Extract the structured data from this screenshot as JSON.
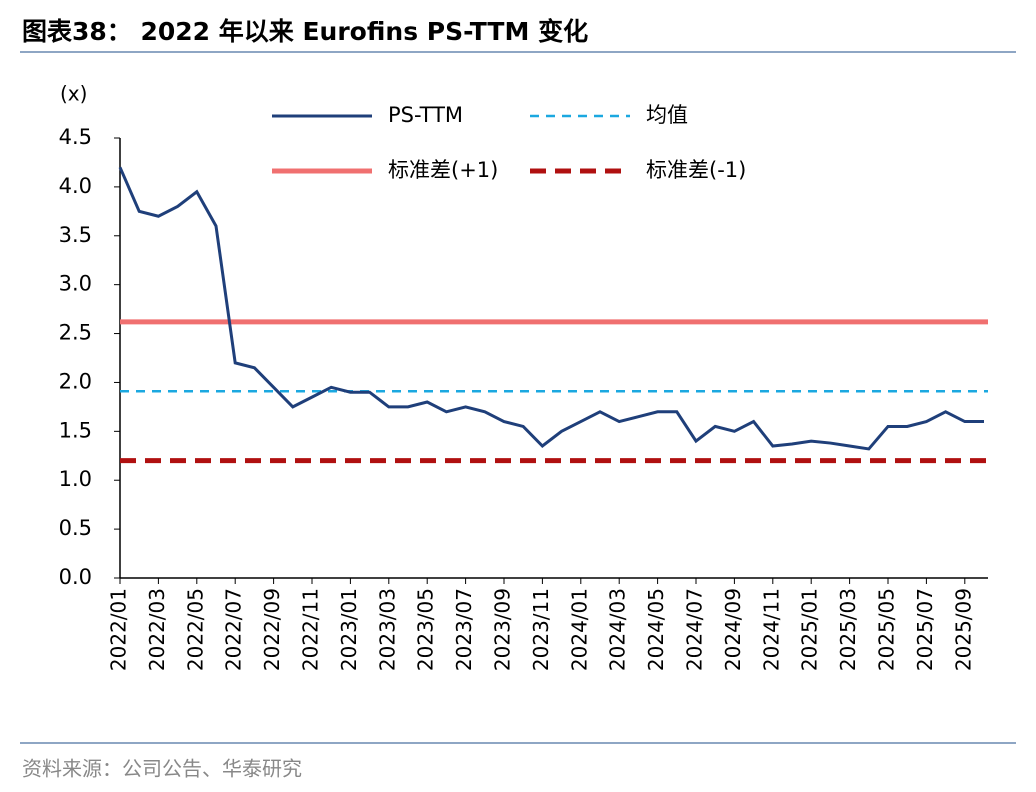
{
  "chart_data": {
    "type": "line",
    "title": "图表38： 2022 年以来 Eurofins PS-TTM 变化",
    "y_unit": "(x)",
    "source": "资料来源：公司公告、华泰研究",
    "categories": [
      "2022/01",
      null,
      "2022/03",
      null,
      "2022/05",
      null,
      "2022/07",
      null,
      "2022/09",
      null,
      "2022/11",
      null,
      "2023/01",
      null,
      "2023/03",
      null,
      "2023/05",
      null,
      "2023/07",
      null,
      "2023/09",
      null,
      "2023/11",
      null,
      "2024/01",
      null,
      "2024/03",
      null,
      "2024/05",
      null,
      "2024/07",
      null,
      "2024/09",
      null,
      "2024/11",
      null,
      "2025/01",
      null,
      "2025/03",
      null,
      "2025/05",
      null,
      "2025/07",
      null,
      "2025/09",
      null
    ],
    "series": [
      {
        "name": "PS-TTM",
        "color": "#1f3f7a",
        "values": [
          4.2,
          3.75,
          3.7,
          3.8,
          3.95,
          3.6,
          2.2,
          2.15,
          1.95,
          1.75,
          1.85,
          1.95,
          1.9,
          1.9,
          1.75,
          1.75,
          1.8,
          1.7,
          1.75,
          1.7,
          1.6,
          1.55,
          1.35,
          1.5,
          1.6,
          1.7,
          1.6,
          1.65,
          1.7,
          1.7,
          1.4,
          1.55,
          1.5,
          1.6,
          1.35,
          1.37,
          1.4,
          1.38,
          1.35,
          1.32,
          1.55,
          1.55,
          1.6,
          1.7,
          1.6,
          1.6
        ]
      }
    ],
    "reference_lines": [
      {
        "name": "均值",
        "value": 1.91,
        "color": "#1ba8e0",
        "style": "dashed"
      },
      {
        "name": "标准差(+1)",
        "value": 2.62,
        "color": "#f07070",
        "style": "solid"
      },
      {
        "name": "标准差(-1)",
        "value": 1.2,
        "color": "#b01010",
        "style": "dashed"
      }
    ],
    "ylim": [
      0,
      4.5
    ],
    "yticks": [
      {
        "value": 0,
        "label": "0.0"
      },
      0.5,
      {
        "value": 1,
        "label": "1.0"
      },
      1.5,
      {
        "value": 2,
        "label": "2.0"
      },
      2.5,
      {
        "value": 3,
        "label": "3.0"
      },
      3.5,
      {
        "value": 4,
        "label": "4.0"
      },
      4.5
    ]
  }
}
